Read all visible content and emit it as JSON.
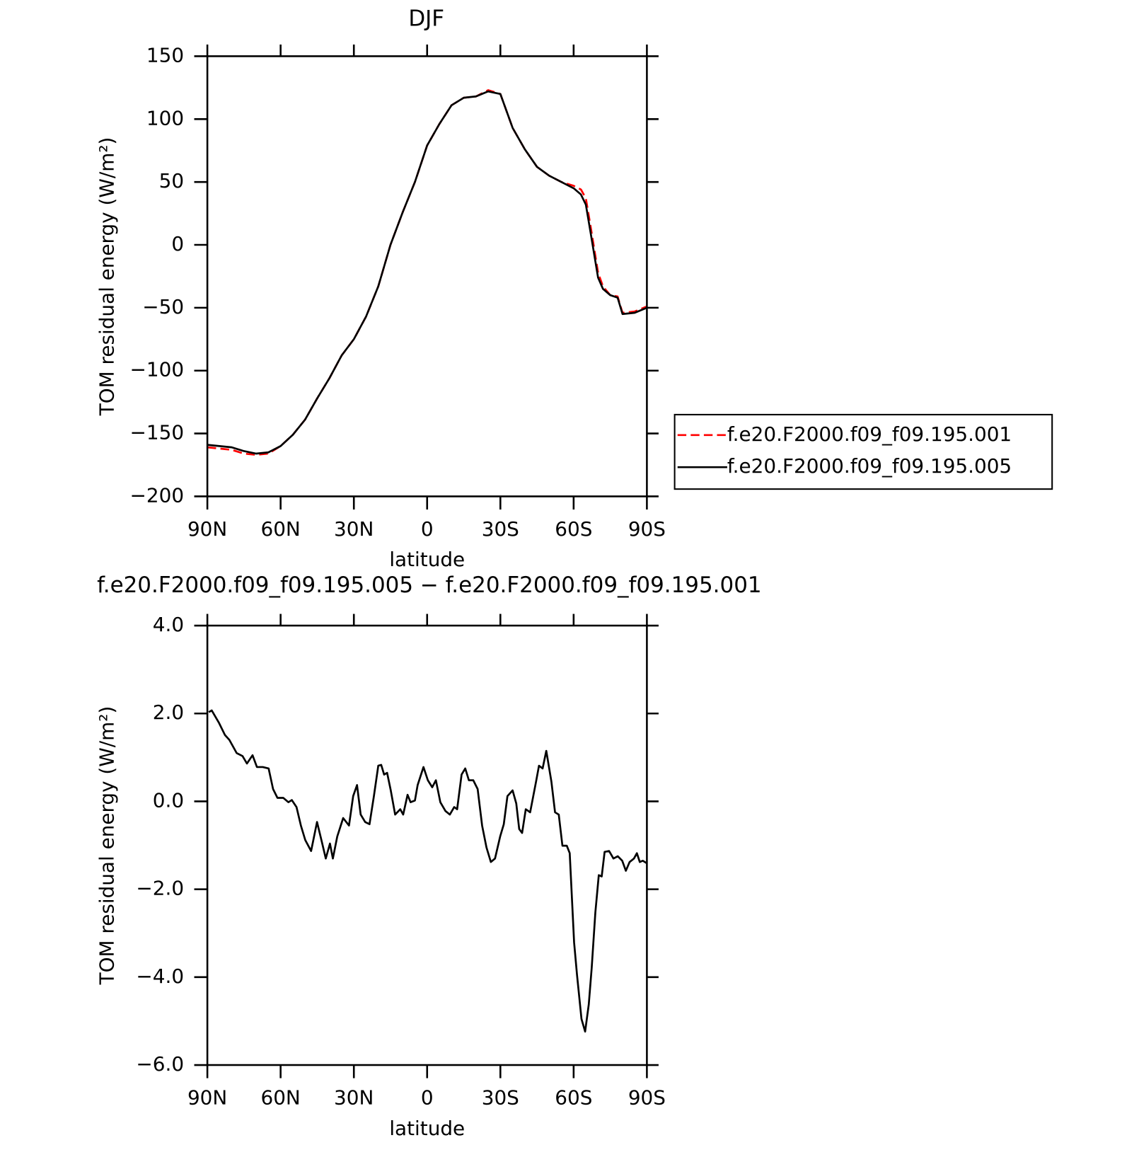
{
  "chart_data": [
    {
      "type": "line",
      "title": "DJF",
      "x_label": "latitude",
      "y_label": "TOM residual energy (W/m²)",
      "xlim": [
        90,
        -90
      ],
      "xticks": [
        {
          "value": 90,
          "label": "90N"
        },
        {
          "value": 60,
          "label": "60N"
        },
        {
          "value": 30,
          "label": "30N"
        },
        0,
        {
          "value": -30,
          "label": "30S"
        },
        {
          "value": -60,
          "label": "60S"
        },
        {
          "value": -90,
          "label": "90S"
        }
      ],
      "ylim": [
        -200,
        150
      ],
      "yticks": [
        150,
        100,
        50,
        0,
        {
          "value": -50,
          "label": "−50"
        },
        {
          "value": -100,
          "label": "−100"
        },
        {
          "value": -150,
          "label": "−150"
        },
        {
          "value": -200,
          "label": "−200"
        }
      ],
      "legend": "right",
      "x": [
        90,
        85,
        80,
        75,
        70,
        65,
        60,
        55,
        50,
        45,
        40,
        35,
        30,
        25,
        20,
        15,
        10,
        5,
        0,
        -5,
        -10,
        -15,
        -20,
        -25,
        -30,
        -35,
        -40,
        -45,
        -50,
        -55,
        -60,
        -63,
        -65,
        -67,
        -70,
        -72,
        -75,
        -78,
        -80,
        -85,
        -90
      ],
      "series": [
        {
          "name": "f.e20.F2000.f09_f09.195.001",
          "color": "#ff0000",
          "style": "dashed",
          "values": [
            -161,
            -162,
            -163,
            -166,
            -167,
            -166,
            -160,
            -151,
            -139,
            -122,
            -106,
            -88,
            -75,
            -57,
            -33,
            0,
            26,
            50,
            79,
            96,
            111,
            117,
            118,
            123,
            120,
            93,
            76,
            62,
            55,
            50,
            47,
            44,
            37,
            14,
            -22,
            -33,
            -40,
            -41,
            -54,
            -53,
            -49
          ]
        },
        {
          "name": "f.e20.F2000.f09_f09.195.005",
          "color": "#000000",
          "style": "solid",
          "values": [
            -159,
            -160,
            -161,
            -164,
            -166,
            -165,
            -160,
            -151,
            -139,
            -122,
            -106,
            -88,
            -75,
            -57,
            -33,
            0,
            26,
            50,
            79,
            96,
            111,
            117,
            118,
            122,
            120,
            93,
            76,
            62,
            55,
            50,
            45,
            40,
            32,
            9,
            -26,
            -35,
            -40,
            -42,
            -55,
            -54,
            -50
          ]
        }
      ]
    },
    {
      "type": "line",
      "title": "f.e20.F2000.f09_f09.195.005 − f.e20.F2000.f09_f09.195.001",
      "x_label": "latitude",
      "y_label": "TOM residual energy (W/m²)",
      "xlim": [
        90,
        -90
      ],
      "xticks": [
        {
          "value": 90,
          "label": "90N"
        },
        {
          "value": 60,
          "label": "60N"
        },
        {
          "value": 30,
          "label": "30N"
        },
        0,
        {
          "value": -30,
          "label": "30S"
        },
        {
          "value": -60,
          "label": "60S"
        },
        {
          "value": -90,
          "label": "90S"
        }
      ],
      "ylim": [
        -6,
        4
      ],
      "yticks": [
        {
          "value": 4,
          "label": "4.0"
        },
        {
          "value": 2,
          "label": "2.0"
        },
        {
          "value": 0,
          "label": "0.0"
        },
        {
          "value": -2,
          "label": "−2.0"
        },
        {
          "value": -4,
          "label": "−4.0"
        },
        {
          "value": -6,
          "label": "−6.0"
        }
      ],
      "color": "#000000",
      "x": [
        89.4,
        88.2,
        85.2,
        82.8,
        81.0,
        78.0,
        75.6,
        73.8,
        71.5,
        69.7,
        67.3,
        64.9,
        63.1,
        61.3,
        58.9,
        56.8,
        55.4,
        53.5,
        51.7,
        49.9,
        47.5,
        45.1,
        43.3,
        41.5,
        39.8,
        38.6,
        36.8,
        34.4,
        32.0,
        30.3,
        28.7,
        27.2,
        25.4,
        23.6,
        21.8,
        20.0,
        18.8,
        17.6,
        16.4,
        14.9,
        13.1,
        11.0,
        9.8,
        8.0,
        6.8,
        5.0,
        3.9,
        1.5,
        -0.3,
        -2.1,
        -3.6,
        -5.4,
        -7.5,
        -9.3,
        -11.1,
        -12.3,
        -14.1,
        -15.6,
        -17.1,
        -18.9,
        -20.7,
        -22.5,
        -24.3,
        -26.1,
        -27.8,
        -29.9,
        -31.4,
        -32.9,
        -35.0,
        -36.5,
        -37.7,
        -38.9,
        -40.4,
        -42.2,
        -44.6,
        -45.8,
        -47.3,
        -48.8,
        -50.9,
        -52.4,
        -53.9,
        -55.4,
        -57.2,
        -58.4,
        -60.2,
        -61.4,
        -63.2,
        -64.7,
        -66.2,
        -67.4,
        -68.9,
        -70.3,
        -71.5,
        -72.7,
        -74.5,
        -76.3,
        -78.1,
        -79.9,
        -81.4,
        -82.9,
        -84.7,
        -85.9,
        -87.1,
        -88.3,
        -90
      ],
      "values": [
        2.03,
        2.07,
        1.78,
        1.51,
        1.4,
        1.1,
        1.03,
        0.86,
        1.05,
        0.78,
        0.78,
        0.75,
        0.28,
        0.08,
        0.08,
        -0.02,
        0.03,
        -0.13,
        -0.55,
        -0.88,
        -1.13,
        -0.47,
        -0.88,
        -1.3,
        -0.96,
        -1.3,
        -0.8,
        -0.38,
        -0.55,
        0.12,
        0.37,
        -0.3,
        -0.47,
        -0.52,
        0.12,
        0.81,
        0.83,
        0.61,
        0.65,
        0.25,
        -0.3,
        -0.18,
        -0.3,
        0.15,
        -0.02,
        0.02,
        0.37,
        0.78,
        0.48,
        0.32,
        0.48,
        -0.02,
        -0.22,
        -0.3,
        -0.13,
        -0.18,
        0.61,
        0.75,
        0.48,
        0.48,
        0.28,
        -0.55,
        -1.05,
        -1.38,
        -1.3,
        -0.8,
        -0.52,
        0.12,
        0.25,
        -0.05,
        -0.63,
        -0.72,
        -0.18,
        -0.25,
        0.45,
        0.81,
        0.75,
        1.15,
        0.45,
        -0.25,
        -0.3,
        -1.01,
        -1.01,
        -1.18,
        -3.21,
        -3.95,
        -4.95,
        -5.24,
        -4.62,
        -3.79,
        -2.53,
        -1.68,
        -1.71,
        -1.15,
        -1.13,
        -1.3,
        -1.25,
        -1.35,
        -1.58,
        -1.38,
        -1.3,
        -1.18,
        -1.38,
        -1.35,
        -1.41
      ]
    }
  ]
}
